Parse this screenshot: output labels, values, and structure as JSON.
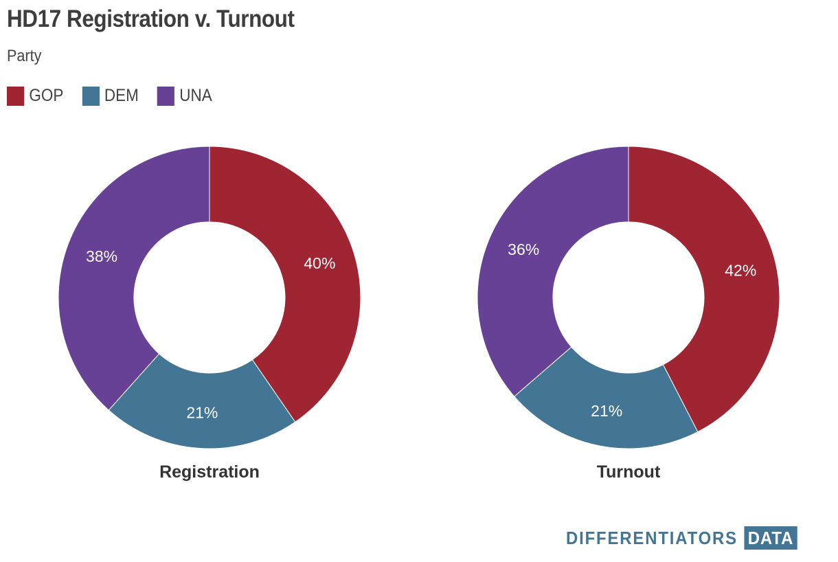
{
  "header": {
    "title": "HD17 Registration v. Turnout",
    "subtitle": "Party"
  },
  "legend": [
    {
      "label": "GOP",
      "color": "#9e2531"
    },
    {
      "label": "DEM",
      "color": "#437595"
    },
    {
      "label": "UNA",
      "color": "#674196"
    }
  ],
  "chart_data": [
    {
      "type": "pie",
      "title": "Registration",
      "categories": [
        "GOP",
        "DEM",
        "UNA"
      ],
      "values": [
        40,
        21,
        38
      ],
      "labels": [
        "40%",
        "21%",
        "38%"
      ],
      "colors": [
        "#9e2531",
        "#437595",
        "#674196"
      ],
      "donut": true
    },
    {
      "type": "pie",
      "title": "Turnout",
      "categories": [
        "GOP",
        "DEM",
        "UNA"
      ],
      "values": [
        42,
        21,
        36
      ],
      "labels": [
        "42%",
        "21%",
        "36%"
      ],
      "colors": [
        "#9e2531",
        "#437595",
        "#674196"
      ],
      "donut": true
    }
  ],
  "brand": {
    "word": "DIFFERENTIATORS",
    "box": "DATA"
  }
}
